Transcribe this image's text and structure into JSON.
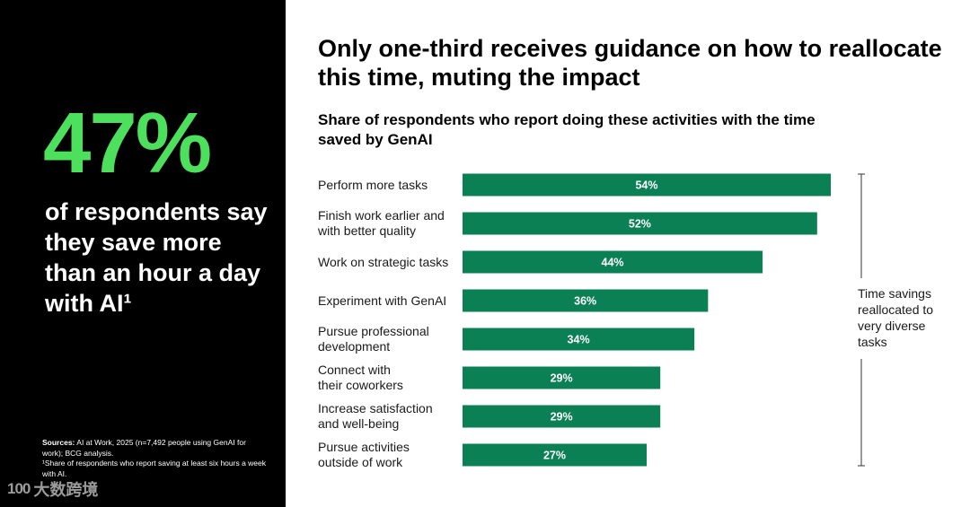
{
  "left_panel": {
    "big_stat": "47%",
    "statement": "of respondents say they save more than an hour a day with AI¹",
    "sources_label": "Sources:",
    "sources_text": "AI at Work, 2025 (n=7,492 people using GenAI for work); BCG analysis.",
    "footnote": "¹Share of respondents who report saving at least six hours a week with AI.",
    "watermark": {
      "glyph": "100",
      "text": "大数跨境"
    }
  },
  "colors": {
    "bar": "#0b8055",
    "stat": "#4de05c",
    "panel": "#000000"
  },
  "chart_data": {
    "type": "bar",
    "orientation": "horizontal",
    "title": "Only one-third receives guidance on how to reallocate this time, muting the impact",
    "subtitle": "Share of respondents who report doing these activities with the time saved by GenAI",
    "categories": [
      "Perform more tasks",
      "Finish work earlier and\nwith better quality",
      "Work on strategic tasks",
      "Experiment with GenAI",
      "Pursue professional\ndevelopment",
      "Connect with\ntheir coworkers",
      "Increase satisfaction\nand well-being",
      "Pursue activities\noutside of work"
    ],
    "values": [
      54,
      52,
      44,
      36,
      34,
      29,
      29,
      27
    ],
    "labels": [
      "54%",
      "52%",
      "44%",
      "36%",
      "34%",
      "29%",
      "29%",
      "27%"
    ],
    "unit": "%",
    "xlim": [
      0,
      54
    ],
    "annotation": "Time savings reallocated to very diverse tasks"
  }
}
